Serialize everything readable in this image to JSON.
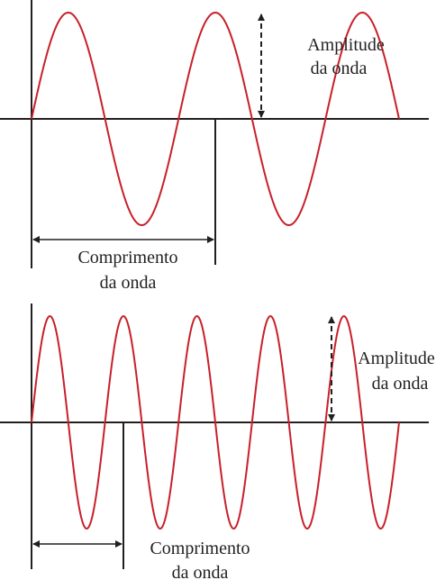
{
  "colors": {
    "wave": "#c8202a",
    "axis": "#231f20",
    "background": "#ffffff"
  },
  "panels": [
    {
      "cycles": 2.5,
      "amplitude": {
        "line1": "Amplitude",
        "line2": "da onda"
      },
      "wavelength": {
        "line1": "Comprimento",
        "line2": "da onda"
      }
    },
    {
      "cycles": 5,
      "amplitude": {
        "line1": "Amplitude",
        "line2": "da onda"
      },
      "wavelength": {
        "line1": "Comprimento",
        "line2": "da onda"
      }
    }
  ]
}
